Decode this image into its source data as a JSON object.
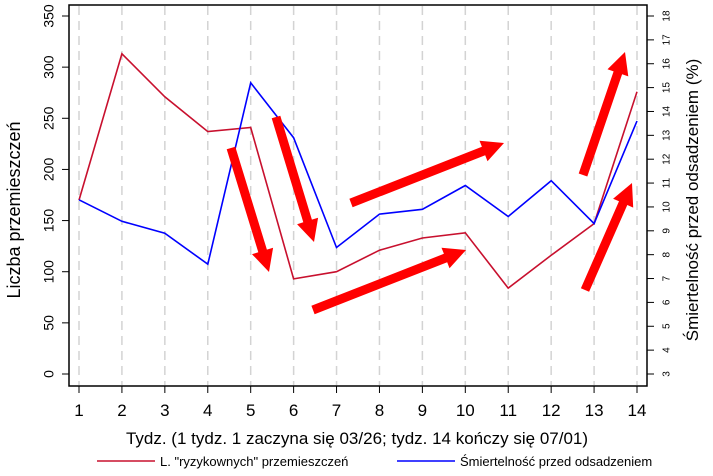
{
  "chart_data": {
    "type": "line",
    "title": "",
    "xlabel": "Tydz. (1 tydz. 1 zaczyna się  03/26; tydz. 14 kończy się 07/01)",
    "ylabel": "Liczba przemieszczeń",
    "ylabel_right": "Śmiertelność przed odsadzeniem (%)",
    "x": [
      1,
      2,
      3,
      4,
      5,
      6,
      7,
      8,
      9,
      10,
      11,
      12,
      13,
      14
    ],
    "x_tick_labels": [
      "1",
      "2",
      "3",
      "4",
      "5",
      "6",
      "7",
      "8",
      "9",
      "10",
      "11",
      "12",
      "13",
      "14"
    ],
    "ylim": [
      0,
      350
    ],
    "y_ticks": [
      0,
      50,
      100,
      150,
      200,
      250,
      300,
      350
    ],
    "ylim_right": [
      3,
      18
    ],
    "y_ticks_right": [
      3,
      4,
      5,
      6,
      7,
      8,
      9,
      10,
      11,
      12,
      13,
      14,
      15,
      16,
      17,
      18
    ],
    "grid": "vertical dashed lines at each week",
    "legend_position": "bottom",
    "series": [
      {
        "name": "L. \"ryzykownych\" przemieszczeń",
        "axis": "left",
        "color": "#c8102e",
        "values": [
          170,
          313,
          271,
          237,
          241,
          93,
          100,
          121,
          133,
          138,
          84,
          116,
          147,
          276
        ]
      },
      {
        "name": "Śmiertelność przed odsadzeniem",
        "axis": "right",
        "color": "#0000ff",
        "values": [
          10.3,
          9.4,
          8.9,
          7.6,
          15.2,
          12.9,
          8.3,
          9.7,
          9.9,
          10.9,
          9.6,
          11.1,
          9.3,
          13.6
        ]
      }
    ],
    "annotations": [
      {
        "type": "arrow",
        "color": "#ff0000",
        "direction": "down",
        "from": [
          231,
          148
        ],
        "to": [
          269,
          272
        ]
      },
      {
        "type": "arrow",
        "color": "#ff0000",
        "direction": "down",
        "from": [
          276,
          117
        ],
        "to": [
          314,
          242
        ]
      },
      {
        "type": "arrow",
        "color": "#ff0000",
        "direction": "up",
        "from": [
          351,
          203
        ],
        "to": [
          504,
          143
        ]
      },
      {
        "type": "arrow",
        "color": "#ff0000",
        "direction": "up",
        "from": [
          313,
          310
        ],
        "to": [
          466,
          250
        ]
      },
      {
        "type": "arrow",
        "color": "#ff0000",
        "direction": "up",
        "from": [
          583,
          175
        ],
        "to": [
          625,
          52
        ]
      },
      {
        "type": "arrow",
        "color": "#ff0000",
        "direction": "up",
        "from": [
          585,
          290
        ],
        "to": [
          632,
          183
        ]
      }
    ]
  },
  "legend": {
    "items": [
      {
        "label": "L. \"ryzykownych\" przemieszczeń",
        "color": "#c8102e"
      },
      {
        "label": "Śmiertelność przed odsadzeniem",
        "color": "#0000ff"
      }
    ]
  },
  "colors": {
    "series_red": "#c8102e",
    "series_blue": "#0000ff",
    "arrow": "#ff0000",
    "grid": "#d3d3d3",
    "frame": "#000000"
  }
}
